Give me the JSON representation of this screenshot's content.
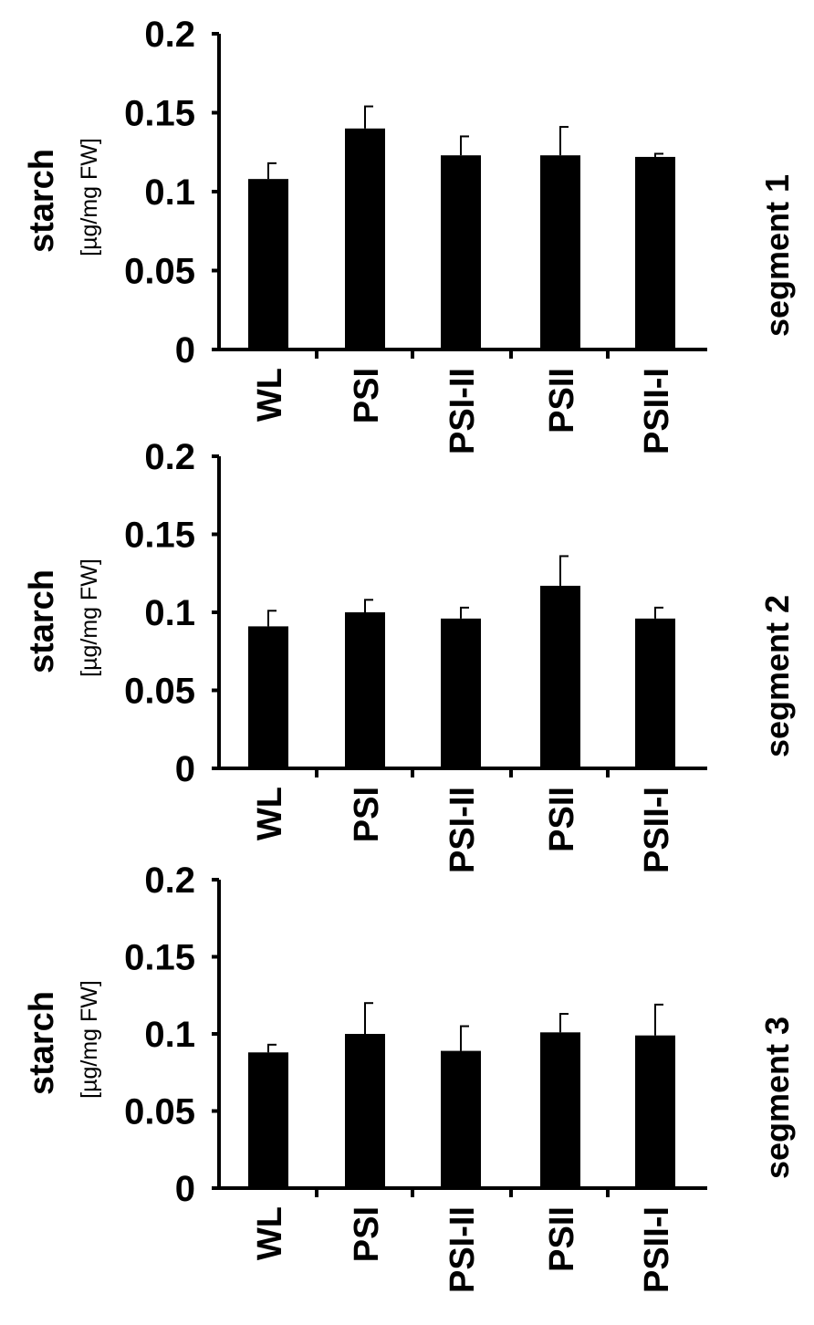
{
  "chart_data": [
    {
      "type": "bar",
      "title": "segment 1",
      "ylabel": "starch",
      "yunit": "[µg/mg FW]",
      "categories": [
        "WL",
        "PSI",
        "PSI-II",
        "PSII",
        "PSII-I"
      ],
      "values": [
        0.108,
        0.14,
        0.123,
        0.123,
        0.122
      ],
      "errors": [
        0.01,
        0.014,
        0.012,
        0.018,
        0.002
      ],
      "ylim": [
        0,
        0.2
      ],
      "yticks": [
        "0",
        "0.05",
        "0.1",
        "0.15",
        "0.2"
      ],
      "colors": {
        "bar": "#000000"
      }
    },
    {
      "type": "bar",
      "title": "segment 2",
      "ylabel": "starch",
      "yunit": "[µg/mg FW]",
      "categories": [
        "WL",
        "PSI",
        "PSI-II",
        "PSII",
        "PSII-I"
      ],
      "values": [
        0.091,
        0.1,
        0.096,
        0.117,
        0.096
      ],
      "errors": [
        0.01,
        0.008,
        0.007,
        0.019,
        0.007
      ],
      "ylim": [
        0,
        0.2
      ],
      "yticks": [
        "0",
        "0.05",
        "0.1",
        "0.15",
        "0.2"
      ],
      "colors": {
        "bar": "#000000"
      }
    },
    {
      "type": "bar",
      "title": "segment 3",
      "ylabel": "starch",
      "yunit": "[µg/mg FW]",
      "categories": [
        "WL",
        "PSI",
        "PSI-II",
        "PSII",
        "PSII-I"
      ],
      "values": [
        0.088,
        0.1,
        0.089,
        0.101,
        0.099
      ],
      "errors": [
        0.005,
        0.02,
        0.016,
        0.012,
        0.02
      ],
      "ylim": [
        0,
        0.2
      ],
      "yticks": [
        "0",
        "0.05",
        "0.1",
        "0.15",
        "0.2"
      ],
      "colors": {
        "bar": "#000000"
      }
    }
  ]
}
